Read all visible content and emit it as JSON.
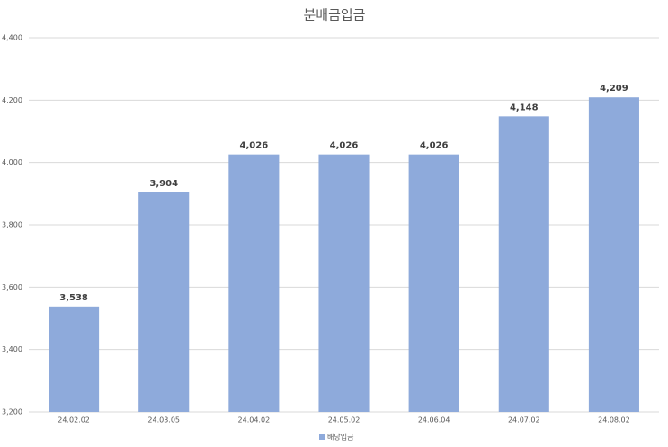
{
  "chart_data": {
    "type": "bar",
    "title": "분배금입금",
    "categories": [
      "24.02.02",
      "24.03.05",
      "24.04.02",
      "24.05.02",
      "24.06.04",
      "24.07.02",
      "24.08.02"
    ],
    "series": [
      {
        "name": "배당입금",
        "color": "#8eaadb",
        "values": [
          3538,
          3904,
          4026,
          4026,
          4026,
          4148,
          4209
        ],
        "value_labels": [
          "3,538",
          "3,904",
          "4,026",
          "4,026",
          "4,026",
          "4,148",
          "4,209"
        ]
      }
    ],
    "ylim": [
      3200,
      4400
    ],
    "yticks": [
      {
        "value": 3200,
        "label": "3,200"
      },
      {
        "value": 3400,
        "label": "3,400"
      },
      {
        "value": 3600,
        "label": "3,600"
      },
      {
        "value": 3800,
        "label": "3,800"
      },
      {
        "value": 4000,
        "label": "4,000"
      },
      {
        "value": 4200,
        "label": "4,200"
      },
      {
        "value": 4400,
        "label": "4,400"
      }
    ],
    "grid": true,
    "legend": "bottom"
  }
}
